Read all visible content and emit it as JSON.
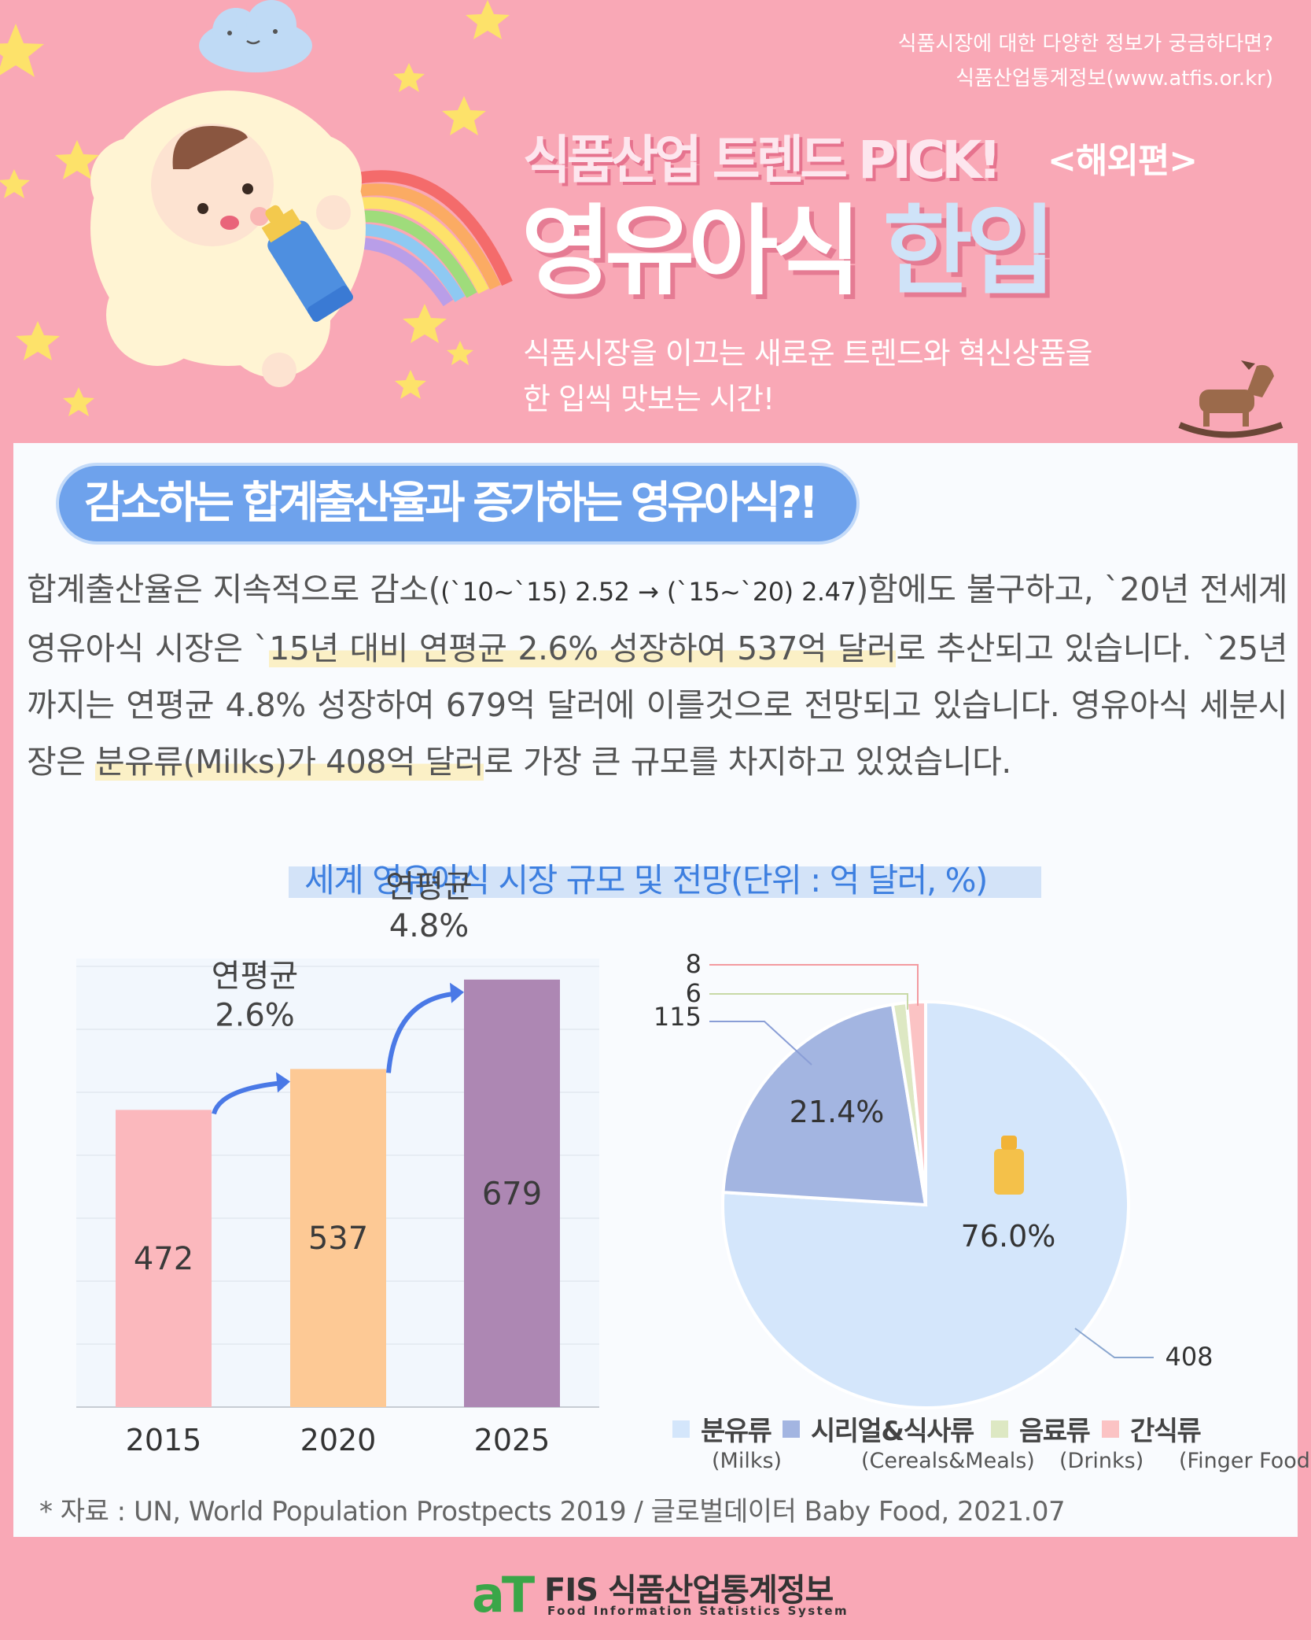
{
  "header": {
    "site_line1": "식품시장에 대한 다양한 정보가 궁금하다면?",
    "site_line2": "식품산업통계정보(www.atfis.or.kr)",
    "pick_title": "식품산업 트렌드 PICK!",
    "pick_sub": "<해외편>",
    "title_word1": "영유아식",
    "title_word2": "한입",
    "tagline1": "식품시장을 이끄는 새로운 트렌드와 혁신상품을",
    "tagline2": "한 입씩 맛보는 시간!"
  },
  "section": {
    "heading": "감소하는 합계출산율과 증가하는 영유아식?!",
    "body": {
      "p1a": "합계출산율은 지속적으로 감소(",
      "p1b": "(`10~`15) 2.52 → (`15~`20) 2.47",
      "p1c": ")함에도 불구하고, `20년 전세계 영유아식 시장은 `",
      "p1d": "15년 대비 연평균 2.6% 성장하여 537억 달러",
      "p1e": "로 추산되고 있습니다. `25년까지는 연평균 4.8% 성장하여 679억 달러에 이를것으로 전망되고 있습니다. 영유아식 세분시장은 ",
      "p1f": "분유류(Milks)가 408억 달러",
      "p1g": "로 가장 큰 규모를 차지하고 있었습니다."
    }
  },
  "chart_title": "세계 영유아식 시장 규모 및 전망(단위 : 억 달러, %)",
  "colors": {
    "bar_2015": "#fbb8bd",
    "bar_2020": "#fdc995",
    "bar_2025": "#ad87b3",
    "milks": "#d4e6fb",
    "cereals": "#a3b5e1",
    "drinks": "#dde8c3",
    "finger": "#fbc3c4"
  },
  "chart_data": [
    {
      "type": "bar",
      "categories": [
        "2015",
        "2020",
        "2025"
      ],
      "values": [
        472,
        537,
        679
      ],
      "annotations": [
        {
          "label1": "연평균",
          "label2": "2.6%"
        },
        {
          "label1": "연평균",
          "label2": "4.8%"
        }
      ],
      "ylim": [
        0,
        700
      ],
      "grid": true
    },
    {
      "type": "pie",
      "slices": [
        {
          "name": "분유류",
          "name_en": "(Milks)",
          "value": 408,
          "percent": "76.0%"
        },
        {
          "name": "시리얼&식사류",
          "name_en": "(Cereals&Meals)",
          "value": 115,
          "percent": "21.4%"
        },
        {
          "name": "음료류",
          "name_en": "(Drinks)",
          "value": 6,
          "percent": ""
        },
        {
          "name": "간식류",
          "name_en": "(Finger Foods)",
          "value": 8,
          "percent": ""
        }
      ]
    }
  ],
  "source": "* 자료 :  UN, World Population Prostpects 2019 / 글로벌데이터 Baby Food, 2021.07",
  "footer": {
    "logo_at": "aT",
    "logo_main": "FIS 식품산업통계정보",
    "logo_sub": "Food Information Statistics System"
  }
}
